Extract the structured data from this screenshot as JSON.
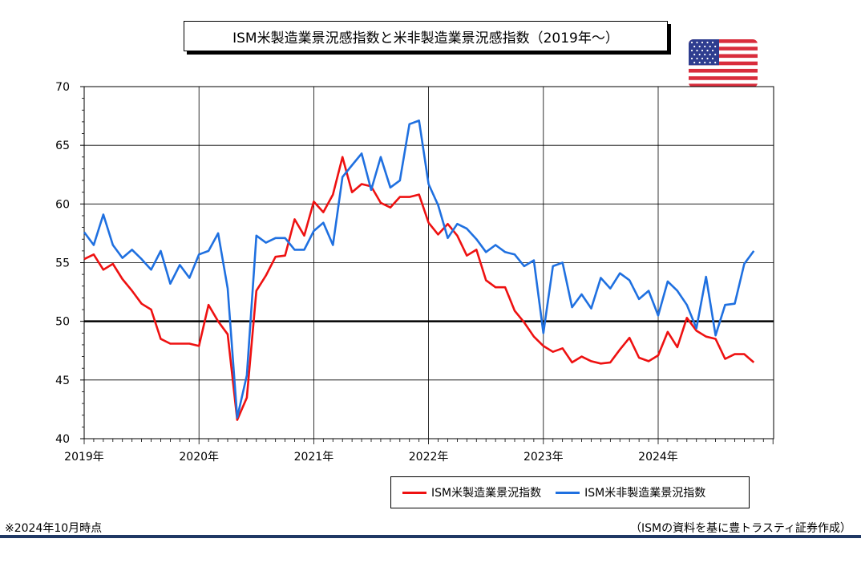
{
  "chart_data": {
    "type": "line",
    "title": "ISM米製造業景況感指数と米非製造業景況感指数（2019年～）",
    "x_tick_labels": [
      "2019年",
      "2020年",
      "2021年",
      "2022年",
      "2023年",
      "2024年"
    ],
    "x_start": "2019-01",
    "ylim": [
      40,
      70
    ],
    "y_ticks": [
      40,
      45,
      50,
      55,
      60,
      65,
      70
    ],
    "reference_line": 50,
    "grid": true,
    "legend_position": "bottom-right",
    "series": [
      {
        "name": "ISM米製造業景況指数",
        "color": "#ee1111",
        "values": [
          55.3,
          55.7,
          54.4,
          54.9,
          53.6,
          52.6,
          51.5,
          51.0,
          48.5,
          48.1,
          48.1,
          48.1,
          47.9,
          51.4,
          50.0,
          48.9,
          41.6,
          43.5,
          52.6,
          53.9,
          55.5,
          55.6,
          58.7,
          57.3,
          60.2,
          59.3,
          60.8,
          64.0,
          61.0,
          61.7,
          61.5,
          60.1,
          59.7,
          60.6,
          60.6,
          60.8,
          58.4,
          57.4,
          58.3,
          57.3,
          55.6,
          56.1,
          53.5,
          52.9,
          52.9,
          50.9,
          49.9,
          48.7,
          47.9,
          47.4,
          47.7,
          46.5,
          47.0,
          46.6,
          46.4,
          46.5,
          47.6,
          48.6,
          46.9,
          46.6,
          47.1,
          49.1,
          47.8,
          50.3,
          49.2,
          48.7,
          48.5,
          46.8,
          47.2,
          47.2,
          46.5
        ]
      },
      {
        "name": "ISM米非製造業景況指数",
        "color": "#1f70e0",
        "values": [
          57.6,
          56.5,
          59.1,
          56.5,
          55.4,
          56.1,
          55.3,
          54.4,
          56.0,
          53.2,
          54.8,
          53.7,
          55.7,
          56.0,
          57.5,
          52.8,
          41.8,
          45.4,
          57.3,
          56.7,
          57.1,
          57.1,
          56.1,
          56.1,
          57.7,
          58.4,
          56.5,
          62.3,
          63.3,
          64.3,
          61.2,
          64.0,
          61.4,
          62.0,
          66.8,
          67.1,
          61.7,
          59.9,
          57.1,
          58.3,
          57.9,
          57.0,
          55.9,
          56.5,
          55.9,
          55.7,
          54.7,
          55.2,
          49.0,
          54.7,
          55.0,
          51.2,
          52.3,
          51.1,
          53.7,
          52.8,
          54.1,
          53.5,
          51.9,
          52.6,
          50.5,
          53.4,
          52.6,
          51.4,
          49.4,
          53.8,
          48.8,
          51.4,
          51.5,
          54.9,
          56.0
        ]
      }
    ]
  },
  "notes": {
    "as_of": "※2024年10月時点",
    "source": "（ISMの資料を基に豊トラスティ証券作成）"
  }
}
